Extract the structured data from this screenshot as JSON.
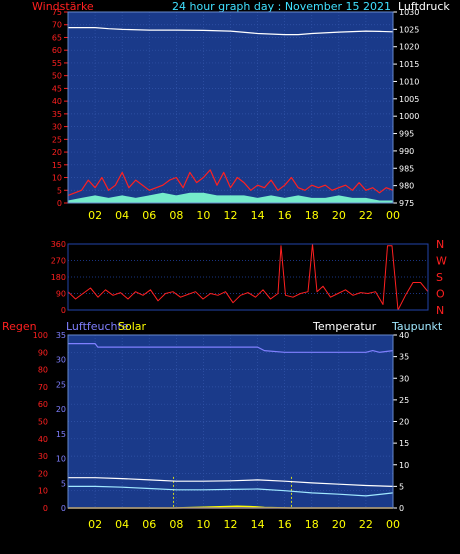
{
  "header": {
    "windstarke": "Windstärke",
    "title": "24 hour graph day : November 15 2021",
    "luftdruck": "Luftdruck"
  },
  "panel2_labels": {
    "compass": [
      "N",
      "W",
      "S",
      "O",
      "N"
    ],
    "ticks": [
      "360",
      "270",
      "180",
      "90",
      "0"
    ]
  },
  "panel3_header": {
    "regen": "Regen",
    "luftfeuchte": "Luftfeuchte",
    "solar": "Solar",
    "temperatur": "Temperatur",
    "taupunkt": "Taupunkt"
  },
  "colors": {
    "plot_bg": "#1a3a8a",
    "grid": "#3355aa",
    "wind": "#ff2020",
    "gust": "#ffffff",
    "gust_fill": "#80ffd0",
    "pressure": "#ffffff",
    "direction": "#ff2020",
    "temperature": "#ffffff",
    "dewpoint": "#a0e8ff",
    "humidity": "#8080ff",
    "solar": "#ffff00",
    "rain": "#ff8000"
  },
  "chart_data": [
    {
      "type": "line",
      "name": "wind_and_pressure",
      "x_ticks": [
        "02",
        "04",
        "06",
        "08",
        "10",
        "12",
        "14",
        "16",
        "18",
        "20",
        "22",
        "00"
      ],
      "y_left_ticks": [
        "0",
        "5",
        "10",
        "15",
        "20",
        "25",
        "30",
        "35",
        "40",
        "45",
        "50",
        "55",
        "60",
        "65",
        "70",
        "75"
      ],
      "y_right_ticks": [
        "975",
        "980",
        "985",
        "990",
        "995",
        "1000",
        "1005",
        "1010",
        "1015",
        "1020",
        "1025",
        "1030"
      ],
      "ylim_left": [
        0,
        75
      ],
      "ylim_right": [
        975,
        1030
      ],
      "xlim_hours": [
        0,
        24
      ],
      "pressure": {
        "x": [
          0,
          2,
          3,
          4,
          6,
          8,
          10,
          12,
          14,
          16,
          17,
          18,
          20,
          22,
          23,
          24
        ],
        "y": [
          1025.5,
          1025.5,
          1025.2,
          1025.0,
          1024.8,
          1024.8,
          1024.7,
          1024.5,
          1023.8,
          1023.5,
          1023.5,
          1023.8,
          1024.2,
          1024.5,
          1024.4,
          1024.3
        ]
      },
      "wind_speed": {
        "x": [
          0,
          1,
          1.5,
          2,
          2.5,
          3,
          3.5,
          4,
          4.5,
          5,
          6,
          7,
          7.5,
          8,
          8.5,
          9,
          9.5,
          10,
          10.5,
          11,
          11.5,
          12,
          12.5,
          13,
          13.5,
          14,
          14.5,
          15,
          15.5,
          16,
          16.5,
          17,
          17.5,
          18,
          18.5,
          19,
          19.5,
          20,
          20.5,
          21,
          21.5,
          22,
          22.5,
          23,
          23.5,
          24
        ],
        "y": [
          3,
          5,
          9,
          6,
          10,
          5,
          7,
          12,
          6,
          9,
          5,
          7,
          9,
          10,
          6,
          12,
          8,
          10,
          13,
          7,
          12,
          6,
          10,
          8,
          5,
          7,
          6,
          9,
          5,
          7,
          10,
          6,
          5,
          7,
          6,
          7,
          5,
          6,
          7,
          5,
          8,
          5,
          6,
          4,
          6,
          5
        ]
      },
      "wind_gust": {
        "x": [
          0,
          1,
          2,
          3,
          4,
          5,
          6,
          7,
          8,
          9,
          10,
          11,
          12,
          13,
          14,
          15,
          16,
          17,
          18,
          19,
          20,
          21,
          22,
          23,
          24
        ],
        "y": [
          1,
          2,
          3,
          2,
          3,
          2,
          3,
          4,
          3,
          4,
          4,
          3,
          3,
          3,
          2,
          3,
          2,
          3,
          2,
          2,
          3,
          2,
          2,
          1,
          1
        ]
      }
    },
    {
      "type": "line",
      "name": "wind_direction",
      "x_ticks": [],
      "y_ticks": [
        "0",
        "90",
        "180",
        "270",
        "360"
      ],
      "ylim": [
        0,
        360
      ],
      "xlim_hours": [
        0,
        24
      ],
      "direction": {
        "x": [
          0,
          0.5,
          1,
          1.5,
          2,
          2.5,
          3,
          3.5,
          4,
          4.5,
          5,
          5.5,
          6,
          6.5,
          7,
          7.5,
          8,
          8.5,
          9,
          9.5,
          10,
          10.5,
          11,
          11.5,
          12,
          12.5,
          13,
          13.5,
          14,
          14.2,
          14.5,
          15,
          15.5,
          16,
          16.3,
          16.6,
          17,
          17.5,
          18,
          18.5,
          19,
          19.5,
          20,
          20.5,
          21,
          21.3,
          21.6,
          22,
          22.5,
          23,
          23.5,
          24
        ],
        "y": [
          100,
          60,
          90,
          120,
          70,
          110,
          80,
          95,
          60,
          100,
          80,
          110,
          50,
          90,
          100,
          70,
          85,
          100,
          60,
          90,
          80,
          100,
          40,
          80,
          95,
          70,
          110,
          60,
          90,
          350,
          80,
          70,
          90,
          100,
          360,
          100,
          130,
          70,
          90,
          110,
          80,
          95,
          90,
          100,
          30,
          350,
          350,
          0,
          80,
          150,
          150,
          100
        ]
      }
    },
    {
      "type": "line",
      "name": "temperature_humidity_solar_rain",
      "x_ticks": [
        "02",
        "04",
        "06",
        "08",
        "10",
        "12",
        "14",
        "16",
        "18",
        "20",
        "22",
        "00"
      ],
      "y_left_ticks": [
        "0",
        "10",
        "20",
        "30",
        "40",
        "50",
        "60",
        "70",
        "80",
        "90",
        "100"
      ],
      "y_second_ticks": [
        "0",
        "5",
        "10",
        "15",
        "20",
        "25",
        "30",
        "35"
      ],
      "y_right_ticks": [
        "0",
        "5",
        "10",
        "15",
        "20",
        "25",
        "30",
        "35",
        "40"
      ],
      "ylim_left": [
        0,
        100
      ],
      "ylim_second": [
        0,
        35
      ],
      "ylim_right": [
        0,
        40
      ],
      "xlim_hours": [
        0,
        24
      ],
      "humidity": {
        "x": [
          0,
          2,
          2.2,
          6,
          10,
          12,
          14,
          14.5,
          16,
          18,
          20,
          22,
          22.5,
          23,
          24
        ],
        "y": [
          95,
          95,
          93,
          93,
          93,
          93,
          93,
          91,
          90,
          90,
          90,
          90,
          91,
          90,
          91
        ]
      },
      "temperature": {
        "x": [
          0,
          2,
          4,
          6,
          8,
          10,
          12,
          14,
          16,
          18,
          20,
          22,
          24
        ],
        "y": [
          7.0,
          7.0,
          6.8,
          6.5,
          6.2,
          6.2,
          6.3,
          6.5,
          6.2,
          5.8,
          5.5,
          5.2,
          5.0
        ]
      },
      "dewpoint": {
        "x": [
          0,
          2,
          4,
          6,
          8,
          10,
          12,
          14,
          16,
          18,
          20,
          22,
          24
        ],
        "y": [
          5.0,
          5.0,
          4.8,
          4.5,
          4.2,
          4.2,
          4.3,
          4.4,
          4.0,
          3.5,
          3.2,
          2.8,
          3.5
        ]
      },
      "solar": {
        "x": [
          0,
          7.8,
          8.5,
          10,
          11.5,
          12.5,
          13.5,
          14.5,
          16.5,
          17,
          24
        ],
        "y": [
          0,
          0,
          0.2,
          0.4,
          0.8,
          1.0,
          0.8,
          0.3,
          0,
          0,
          0
        ]
      },
      "rain": {
        "x": [
          0,
          24
        ],
        "y": [
          0,
          0
        ]
      },
      "vertical_markers_hours": [
        7.8,
        16.5
      ]
    }
  ]
}
